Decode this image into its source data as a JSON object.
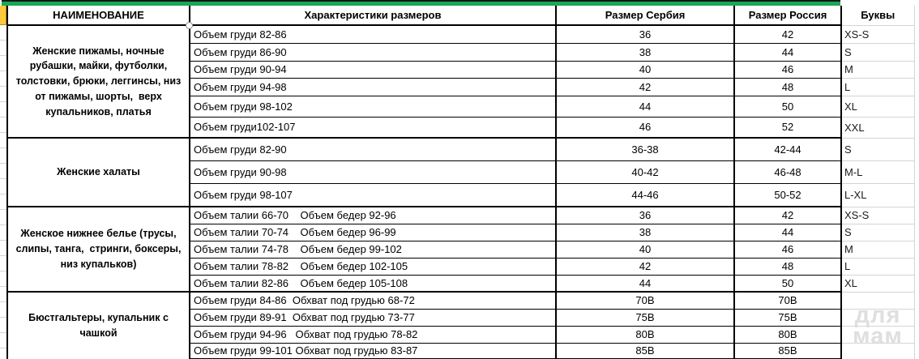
{
  "header": {
    "columns": [
      "НАИМЕНОВАНИЕ",
      "Характеристики размеров",
      "Размер Сербия",
      "Размер Россия",
      "Буквы"
    ]
  },
  "groups": [
    {
      "name": "Женские пижамы, ночные рубашки, майки, футболки, толстовки, брюки, леггинсы, низ от пижамы, шорты,  верх купальников, платья",
      "rows": [
        {
          "characteristic": "Объем груди 82-86",
          "serbia": "36",
          "russia": "42",
          "letters": "XS-S"
        },
        {
          "characteristic": "Объем груди 86-90",
          "serbia": "38",
          "russia": "44",
          "letters": "S"
        },
        {
          "characteristic": "Объем груди 90-94",
          "serbia": "40",
          "russia": "46",
          "letters": "M"
        },
        {
          "characteristic": "Объем груди 94-98",
          "serbia": "42",
          "russia": "48",
          "letters": "L"
        },
        {
          "characteristic": "Объем груди 98-102",
          "serbia": "44",
          "russia": "50",
          "letters": "XL"
        },
        {
          "characteristic": "Объем груди102-107",
          "serbia": "46",
          "russia": "52",
          "letters": "XXL"
        }
      ]
    },
    {
      "name": "Женские халаты",
      "rows": [
        {
          "characteristic": "Объем груди 82-90",
          "serbia": "36-38",
          "russia": "42-44",
          "letters": "S"
        },
        {
          "characteristic": "Объем груди 90-98",
          "serbia": "40-42",
          "russia": "46-48",
          "letters": "M-L"
        },
        {
          "characteristic": "Объем груди 98-107",
          "serbia": "44-46",
          "russia": "50-52",
          "letters": "L-XL"
        }
      ]
    },
    {
      "name": "Женское нижнее белье (трусы, слипы, танга,  стринги, боксеры, низ купальков)",
      "rows": [
        {
          "characteristic": "Объем талии 66-70    Объем бедер 92-96",
          "serbia": "36",
          "russia": "42",
          "letters": "XS-S"
        },
        {
          "characteristic": "Объем талии 70-74    Объем бедер 96-99",
          "serbia": "38",
          "russia": "44",
          "letters": "S"
        },
        {
          "characteristic": "Объем талии 74-78    Объем бедер 99-102",
          "serbia": "40",
          "russia": "46",
          "letters": "M"
        },
        {
          "characteristic": "Объем талии 78-82    Объем бедер 102-105",
          "serbia": "42",
          "russia": "48",
          "letters": "L"
        },
        {
          "characteristic": "Объем талии 82-86    Объем бедер 105-108",
          "serbia": "44",
          "russia": "50",
          "letters": "XL"
        }
      ]
    },
    {
      "name": "Бюстгальтеры, купальник с чашкой",
      "rows": [
        {
          "characteristic": "Объем груди 84-86  Обхват под грудью 68-72",
          "serbia": "70В",
          "russia": "70В",
          "letters": ""
        },
        {
          "characteristic": "Объем груди 89-91  Обхват под грудью 73-77",
          "serbia": "75В",
          "russia": "75В",
          "letters": ""
        },
        {
          "characteristic": "Объем груди 94-96   Обхват под грудью 78-82",
          "serbia": "80В",
          "russia": "80В",
          "letters": ""
        },
        {
          "characteristic": "Объем груди 99-101 Обхват под грудью 83-87",
          "serbia": "85В",
          "russia": "85В",
          "letters": ""
        }
      ]
    }
  ],
  "watermark": {
    "line1": "для",
    "line2": "мам"
  },
  "colors": {
    "top_bar_green": "#1AA857",
    "row_header_yellow": "#FFC83D",
    "grid_line": "#D4D4D4",
    "table_border": "#000000",
    "watermark_gray": "#DCDCDC"
  }
}
